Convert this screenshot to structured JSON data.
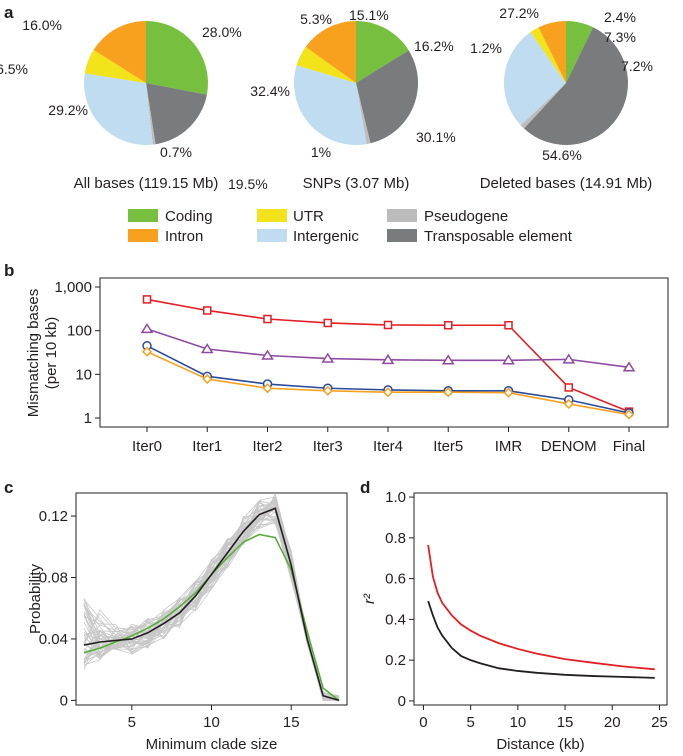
{
  "panel_letters": {
    "a": "a",
    "b": "b",
    "c": "c",
    "d": "d"
  },
  "legend": {
    "items": [
      {
        "label": "Coding",
        "color": "#77bf3f"
      },
      {
        "label": "Intron",
        "color": "#f7a11f"
      },
      {
        "label": "UTR",
        "color": "#f2e31a"
      },
      {
        "label": "Intergenic",
        "color": "#bfdcf0"
      },
      {
        "label": "Pseudogene",
        "color": "#bcbcbc"
      },
      {
        "label": "Transposable element",
        "color": "#7a7b7d"
      }
    ]
  },
  "chart_data": [
    {
      "type": "pie",
      "title": "All bases (119.15 Mb)",
      "slices": [
        {
          "category": "Coding",
          "value": 28.0,
          "label": "28.0%"
        },
        {
          "category": "Transposable element",
          "value": 19.5,
          "label": "19.5%"
        },
        {
          "category": "Pseudogene",
          "value": 0.7,
          "label": "0.7%"
        },
        {
          "category": "Intergenic",
          "value": 29.2,
          "label": "29.2%"
        },
        {
          "category": "UTR",
          "value": 6.5,
          "label": "6.5%"
        },
        {
          "category": "Intron",
          "value": 16.0,
          "label": "16.0%"
        }
      ]
    },
    {
      "type": "pie",
      "title": "SNPs (3.07 Mb)",
      "slices": [
        {
          "category": "Coding",
          "value": 16.2,
          "label": "16.2%"
        },
        {
          "category": "Transposable element",
          "value": 30.1,
          "label": "30.1%"
        },
        {
          "category": "Pseudogene",
          "value": 1.0,
          "label": "1%"
        },
        {
          "category": "Intergenic",
          "value": 32.4,
          "label": "32.4%"
        },
        {
          "category": "UTR",
          "value": 5.3,
          "label": "5.3%"
        },
        {
          "category": "Intron",
          "value": 15.1,
          "label": "15.1%"
        }
      ]
    },
    {
      "type": "pie",
      "title": "Deleted bases (14.91 Mb)",
      "slices": [
        {
          "category": "Coding",
          "value": 7.2,
          "label": "7.2%"
        },
        {
          "category": "Transposable element",
          "value": 54.6,
          "label": "54.6%"
        },
        {
          "category": "Pseudogene",
          "value": 1.2,
          "label": "1.2%"
        },
        {
          "category": "Intergenic",
          "value": 27.2,
          "label": "27.2%"
        },
        {
          "category": "UTR",
          "value": 2.4,
          "label": "2.4%"
        },
        {
          "category": "Intron",
          "value": 7.3,
          "label": "7.3%"
        }
      ]
    },
    {
      "type": "line",
      "ylabel": [
        "Mismatching bases",
        "(per 10 kb)"
      ],
      "yscale": "log",
      "ylim": [
        1,
        1000
      ],
      "yticks": [
        1,
        10,
        100,
        1000
      ],
      "ytick_labels": [
        "1",
        "10",
        "100",
        "1,000"
      ],
      "categories": [
        "Iter0",
        "Iter1",
        "Iter2",
        "Iter3",
        "Iter4",
        "Iter5",
        "IMR",
        "DENOM",
        "Final"
      ],
      "series": [
        {
          "marker": "square",
          "color": "#e31e24",
          "values": [
            520,
            290,
            185,
            150,
            135,
            133,
            133,
            5.0,
            1.4
          ]
        },
        {
          "marker": "triangle",
          "color": "#8e4aa3",
          "values": [
            110,
            38,
            27,
            23,
            21.5,
            21,
            21,
            22,
            14.5
          ]
        },
        {
          "marker": "circle",
          "color": "#2a4a9c",
          "values": [
            45,
            9,
            6,
            4.8,
            4.4,
            4.2,
            4.2,
            2.6,
            1.3
          ]
        },
        {
          "marker": "diamond",
          "color": "#f7a11f",
          "values": [
            33,
            7.8,
            4.8,
            4.2,
            3.9,
            3.9,
            3.8,
            2.1,
            1.2
          ]
        }
      ]
    },
    {
      "type": "line",
      "xlabel": "Minimum clade size",
      "ylabel": "Probability",
      "xlim": [
        1.5,
        18.5
      ],
      "ylim": [
        -0.003,
        0.135
      ],
      "xticks": [
        5,
        10,
        15
      ],
      "yticks": [
        0,
        0.04,
        0.08,
        0.12
      ],
      "ytick_labels": [
        "0",
        "0.04",
        "0.08",
        "0.12"
      ],
      "series": [
        {
          "color": "#231f20",
          "points": [
            [
              2,
              0.036
            ],
            [
              3,
              0.038
            ],
            [
              4,
              0.039
            ],
            [
              5,
              0.04
            ],
            [
              6,
              0.044
            ],
            [
              7,
              0.05
            ],
            [
              8,
              0.057
            ],
            [
              9,
              0.068
            ],
            [
              10,
              0.082
            ],
            [
              11,
              0.096
            ],
            [
              12,
              0.11
            ],
            [
              13,
              0.121
            ],
            [
              14,
              0.125
            ],
            [
              15,
              0.088
            ],
            [
              16,
              0.04
            ],
            [
              17,
              0.003
            ],
            [
              18,
              0.0
            ]
          ]
        },
        {
          "color": "#5aac3a",
          "points": [
            [
              2,
              0.031
            ],
            [
              3,
              0.034
            ],
            [
              4,
              0.038
            ],
            [
              5,
              0.042
            ],
            [
              6,
              0.047
            ],
            [
              7,
              0.053
            ],
            [
              8,
              0.061
            ],
            [
              9,
              0.07
            ],
            [
              10,
              0.082
            ],
            [
              11,
              0.093
            ],
            [
              12,
              0.103
            ],
            [
              13,
              0.108
            ],
            [
              14,
              0.106
            ],
            [
              15,
              0.085
            ],
            [
              16,
              0.045
            ],
            [
              17,
              0.008
            ],
            [
              18,
              0.0
            ]
          ]
        }
      ],
      "background_series": {
        "color": "#c7c7c7",
        "count": 40
      }
    },
    {
      "type": "line",
      "xlabel": "Distance (kb)",
      "ylabel": "r²",
      "xlim": [
        -1,
        25.8
      ],
      "ylim": [
        -0.02,
        1.02
      ],
      "xticks": [
        0,
        5,
        10,
        15,
        20,
        25
      ],
      "yticks": [
        0,
        0.2,
        0.4,
        0.6,
        0.8,
        1.0
      ],
      "ytick_labels": [
        "0",
        "0.2",
        "0.4",
        "0.6",
        "0.8",
        "1.0"
      ],
      "series": [
        {
          "color": "#e31e24",
          "points": [
            [
              0.5,
              0.765
            ],
            [
              1,
              0.61
            ],
            [
              1.5,
              0.53
            ],
            [
              2,
              0.48
            ],
            [
              3,
              0.42
            ],
            [
              4,
              0.375
            ],
            [
              5,
              0.345
            ],
            [
              6,
              0.32
            ],
            [
              8,
              0.283
            ],
            [
              10,
              0.255
            ],
            [
              12,
              0.232
            ],
            [
              15,
              0.205
            ],
            [
              18,
              0.187
            ],
            [
              21,
              0.17
            ],
            [
              24.5,
              0.155
            ]
          ]
        },
        {
          "color": "#231f20",
          "points": [
            [
              0.5,
              0.49
            ],
            [
              1,
              0.42
            ],
            [
              1.5,
              0.36
            ],
            [
              2,
              0.32
            ],
            [
              3,
              0.26
            ],
            [
              4,
              0.22
            ],
            [
              5,
              0.2
            ],
            [
              6,
              0.185
            ],
            [
              8,
              0.16
            ],
            [
              10,
              0.147
            ],
            [
              12,
              0.138
            ],
            [
              15,
              0.128
            ],
            [
              18,
              0.122
            ],
            [
              21,
              0.118
            ],
            [
              24.5,
              0.113
            ]
          ]
        }
      ]
    }
  ]
}
